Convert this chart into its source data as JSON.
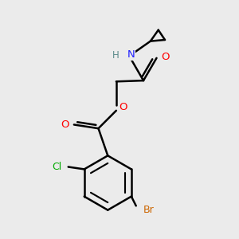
{
  "bg_color": "#ebebeb",
  "bond_color": "#000000",
  "bond_width": 1.8,
  "atom_colors": {
    "C": "#000000",
    "H": "#5a8a8a",
    "N": "#2020ff",
    "O": "#ff0000",
    "Cl": "#00aa00",
    "Br": "#cc6600"
  },
  "figsize": [
    3.0,
    3.0
  ],
  "dpi": 100,
  "xlim": [
    -2.2,
    2.2
  ],
  "ylim": [
    -2.5,
    2.5
  ]
}
